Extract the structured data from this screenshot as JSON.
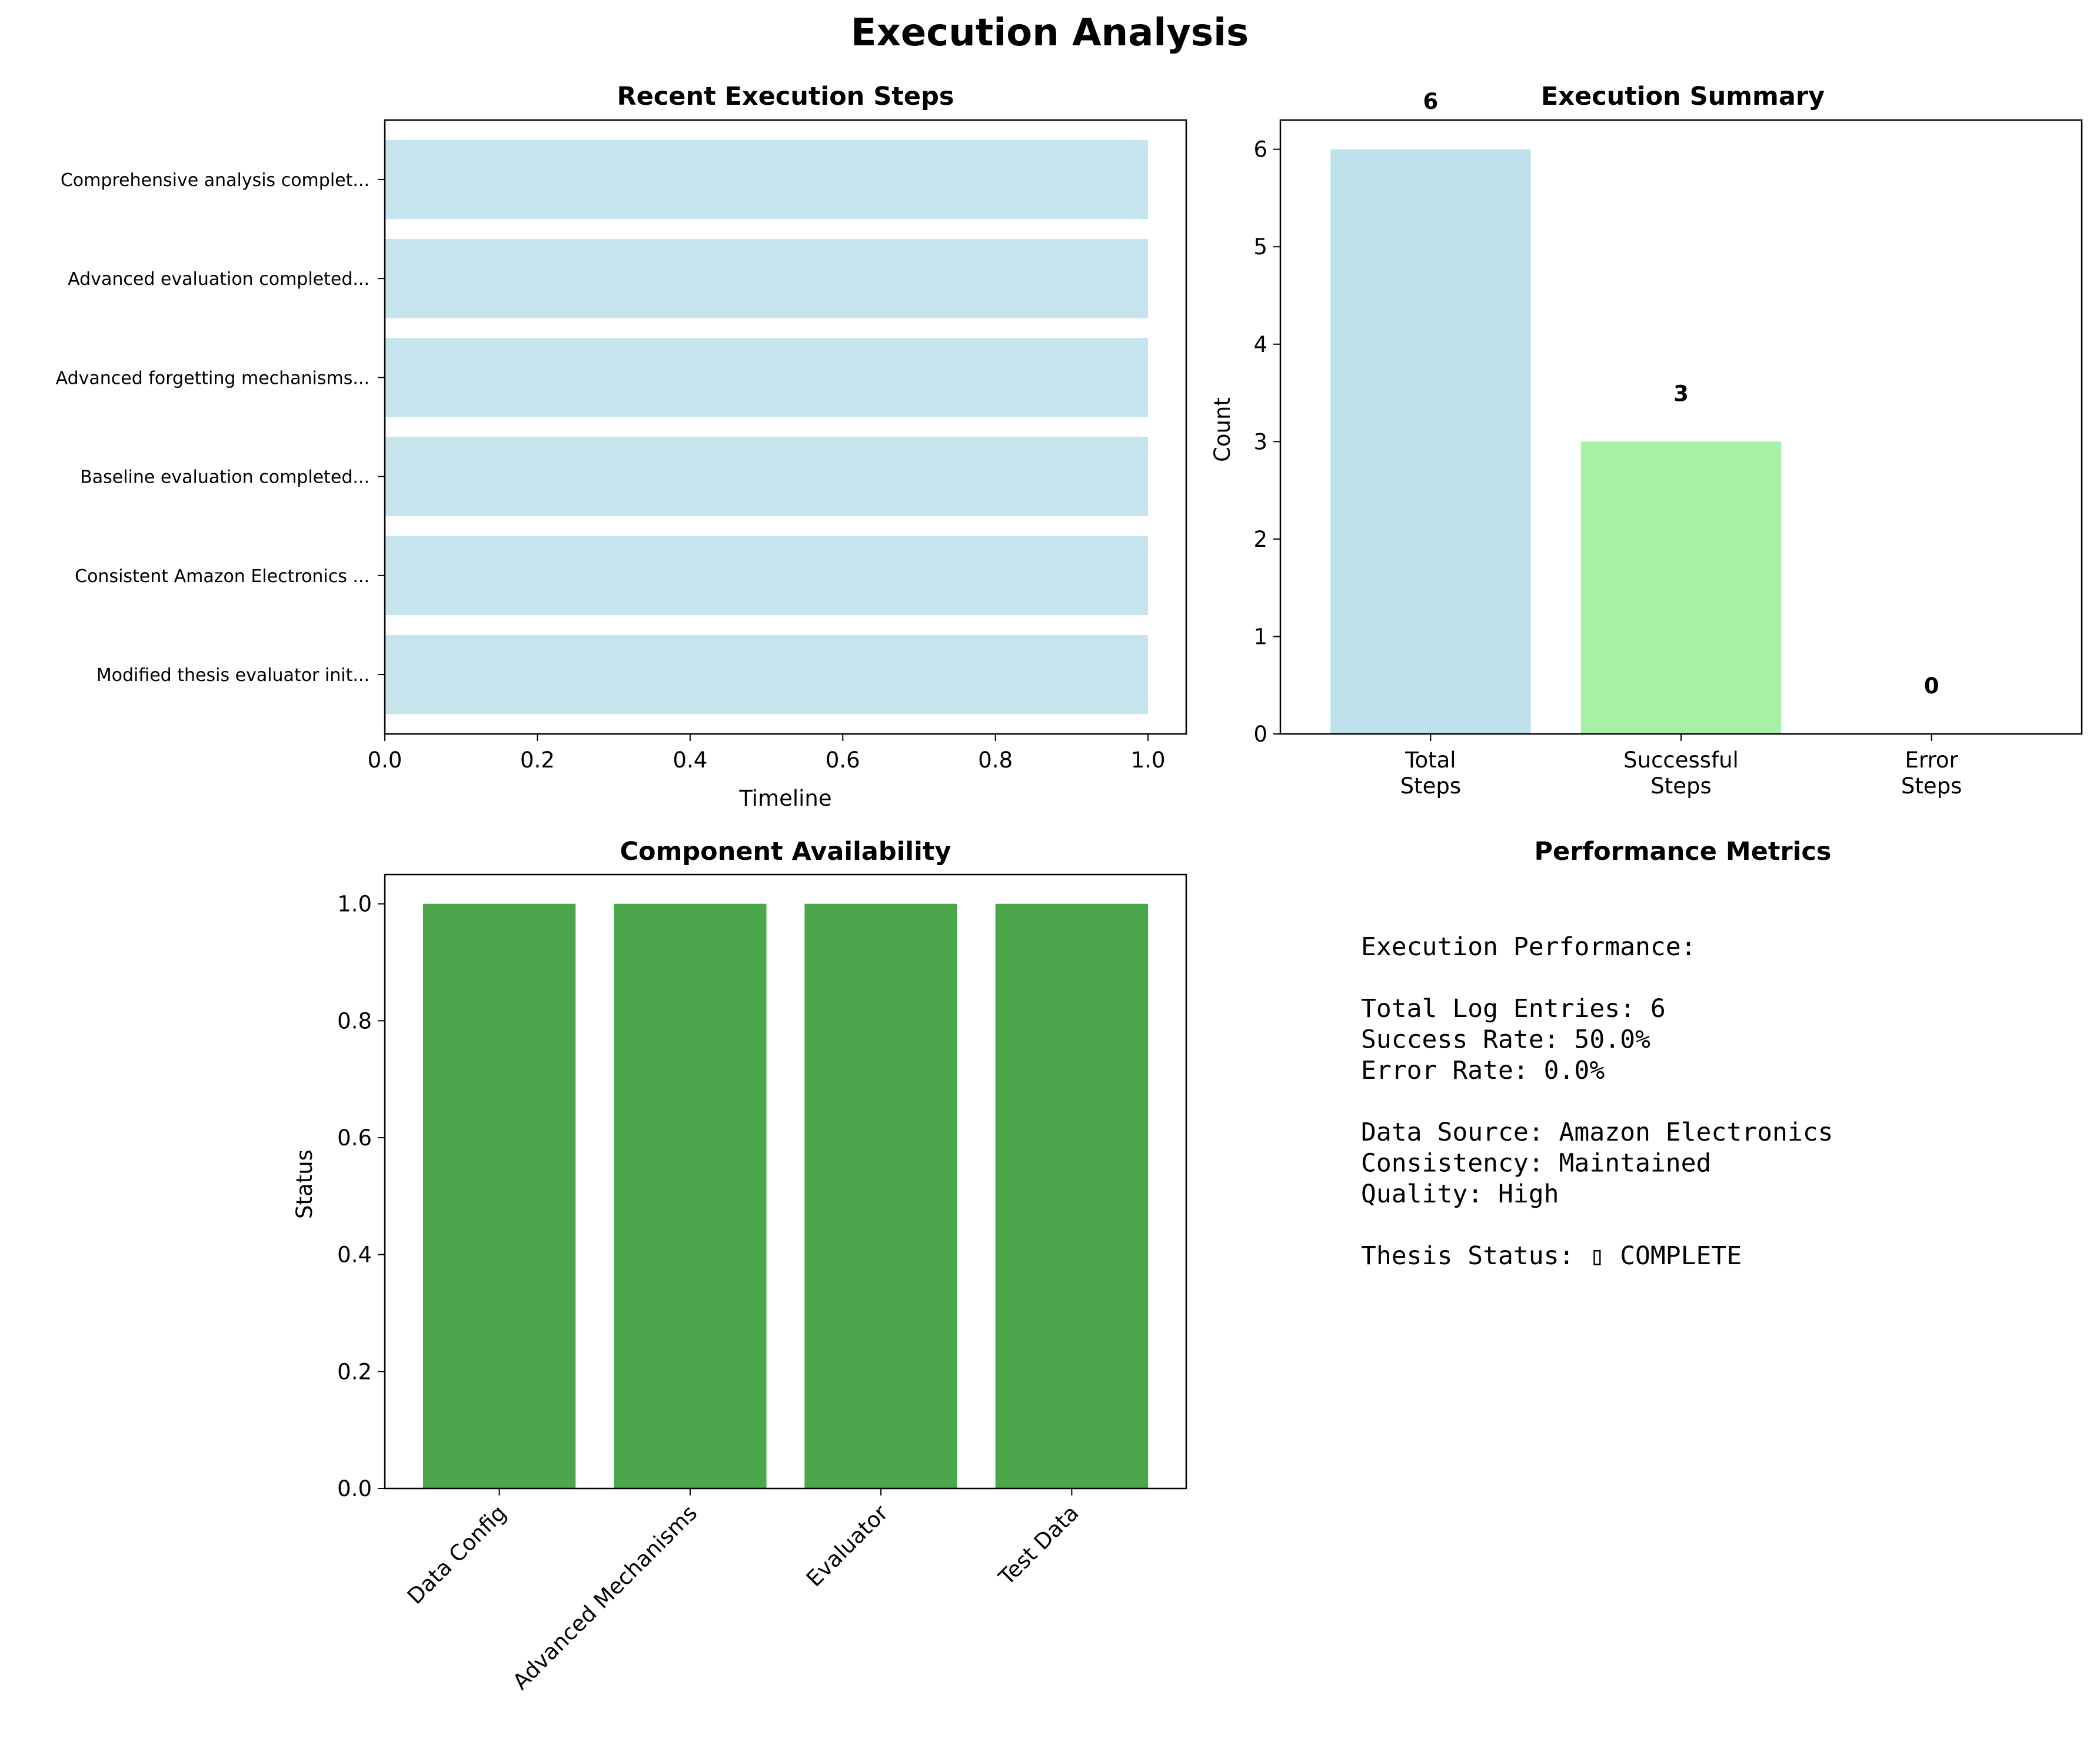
{
  "figure": {
    "title": "Execution Analysis"
  },
  "chart_data": [
    {
      "id": "steps",
      "type": "bar",
      "orientation": "horizontal",
      "title": "Recent Execution Steps",
      "xlabel": "Timeline",
      "ylabel": "",
      "xlim": [
        0,
        1.05
      ],
      "xticks": [
        "0.0",
        "0.2",
        "0.4",
        "0.6",
        "0.8",
        "1.0"
      ],
      "categories": [
        "Modified thesis evaluator init...",
        "Consistent Amazon Electronics ...",
        "Baseline evaluation completed...",
        "Advanced forgetting mechanisms...",
        "Advanced evaluation completed...",
        "Comprehensive analysis complet..."
      ],
      "values": [
        1,
        1,
        1,
        1,
        1,
        1
      ],
      "color": "#add8e6",
      "grid": false,
      "legend": "none"
    },
    {
      "id": "summary",
      "type": "bar",
      "title": "Execution Summary",
      "xlabel": "",
      "ylabel": "Count",
      "ylim": [
        0,
        6.3
      ],
      "yticks": [
        "0",
        "1",
        "2",
        "3",
        "4",
        "5",
        "6"
      ],
      "categories": [
        [
          "Total",
          "Steps"
        ],
        [
          "Successful",
          "Steps"
        ],
        [
          "Error",
          "Steps"
        ]
      ],
      "values": [
        6,
        3,
        0
      ],
      "data_labels": [
        "6",
        "3",
        "0"
      ],
      "colors": [
        "#add8e6",
        "#90ee90",
        "#f08080"
      ],
      "grid": false,
      "legend": "none"
    },
    {
      "id": "availability",
      "type": "bar",
      "title": "Component Availability",
      "xlabel": "",
      "ylabel": "Status",
      "ylim": [
        0,
        1.05
      ],
      "yticks": [
        "0.0",
        "0.2",
        "0.4",
        "0.6",
        "0.8",
        "1.0"
      ],
      "categories": [
        "Data Config",
        "Advanced Mechanisms",
        "Evaluator",
        "Test Data"
      ],
      "values": [
        1,
        1,
        1,
        1
      ],
      "color": "#4ca64c",
      "grid": false,
      "legend": "none"
    }
  ],
  "metrics": {
    "title": "Performance Metrics",
    "lines": [
      "Execution Performance:",
      "",
      "Total Log Entries: 6",
      "Success Rate: 50.0%",
      "Error Rate: 0.0%",
      "",
      "Data Source: Amazon Electronics",
      "Consistency: Maintained",
      "Quality: High",
      "",
      "Thesis Status: ▯ COMPLETE"
    ]
  }
}
